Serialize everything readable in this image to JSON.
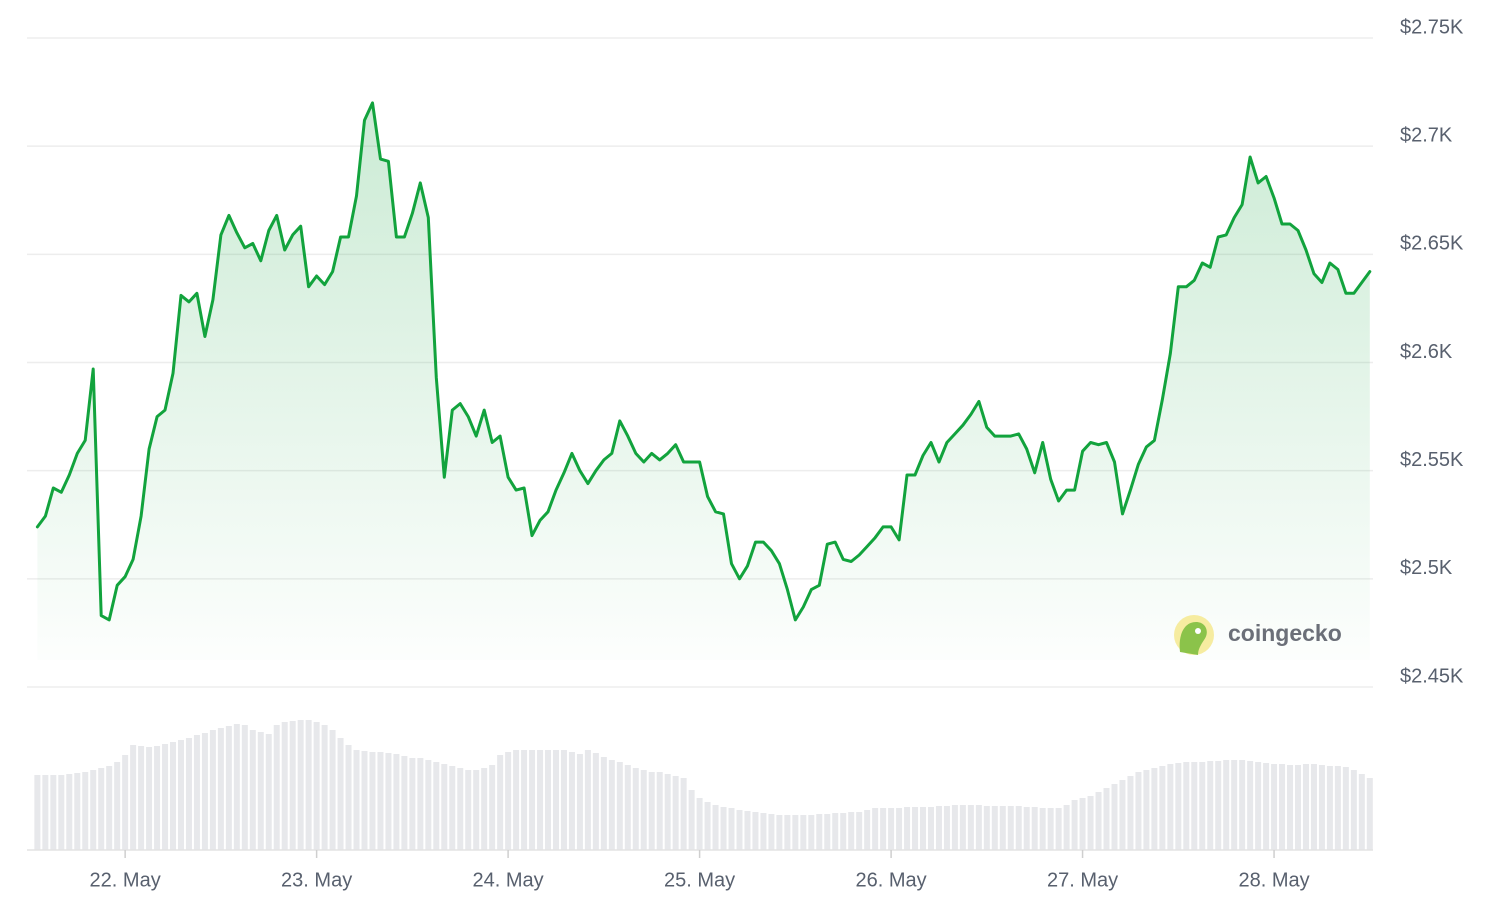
{
  "chart_data": {
    "type": "line",
    "color": "#12a33d",
    "volume_color": "#e7e8eb",
    "watermark": "coingecko",
    "x": [
      13,
      14,
      15,
      16,
      17,
      18,
      19,
      20,
      21,
      22,
      23,
      24,
      25,
      26,
      27,
      28,
      29,
      30,
      31,
      32,
      33,
      34,
      35,
      36,
      37,
      38,
      39,
      40,
      41,
      42,
      43,
      44,
      45,
      46,
      47,
      48,
      49,
      50,
      51,
      52,
      53,
      54,
      55,
      56,
      57,
      58,
      59,
      60,
      61,
      62,
      63,
      64,
      65,
      66,
      67,
      68,
      69,
      70,
      71,
      72,
      73,
      74,
      75,
      76,
      77,
      78,
      79,
      80,
      81,
      82,
      83,
      84,
      85,
      86,
      87,
      88,
      89,
      90,
      91,
      92,
      93,
      94,
      95,
      96,
      97,
      98,
      99,
      100,
      101,
      102,
      103,
      104,
      105,
      106,
      107,
      108,
      109,
      110,
      111,
      112,
      113,
      114,
      115,
      116,
      117,
      118,
      119,
      120,
      121,
      122,
      123,
      124,
      125,
      126,
      127,
      128,
      129,
      130,
      131,
      132,
      133,
      134,
      135,
      136,
      137,
      138,
      139,
      140,
      141,
      142,
      143,
      144,
      145,
      146,
      147,
      148,
      149,
      150,
      151,
      152,
      153,
      154,
      155,
      156,
      157,
      158,
      159,
      160,
      161,
      162,
      163,
      164,
      165,
      166,
      167,
      168,
      169,
      170,
      171,
      172,
      173,
      174,
      175,
      176,
      177,
      178,
      179,
      180
    ],
    "values": [
      2524,
      2529,
      2542,
      2540,
      2548,
      2558,
      2564,
      2597,
      2483,
      2481,
      2497,
      2501,
      2509,
      2529,
      2560,
      2575,
      2578,
      2595,
      2631,
      2628,
      2632,
      2612,
      2629,
      2659,
      2668,
      2660,
      2653,
      2655,
      2647,
      2661,
      2668,
      2652,
      2659,
      2663,
      2635,
      2640,
      2636,
      2642,
      2658,
      2658,
      2677,
      2712,
      2720,
      2694,
      2693,
      2658,
      2658,
      2669,
      2683,
      2667,
      2593,
      2547,
      2578,
      2581,
      2575,
      2566,
      2578,
      2563,
      2566,
      2547,
      2541,
      2542,
      2520,
      2527,
      2531,
      2541,
      2549,
      2558,
      2550,
      2544,
      2550,
      2555,
      2558,
      2573,
      2566,
      2558,
      2554,
      2558,
      2555,
      2558,
      2562,
      2554,
      2554,
      2554,
      2538,
      2531,
      2530,
      2507,
      2500,
      2506,
      2517,
      2517,
      2513,
      2507,
      2495,
      2481,
      2487,
      2495,
      2497,
      2516,
      2517,
      2509,
      2508,
      2511,
      2515,
      2519,
      2524,
      2524,
      2518,
      2548,
      2548,
      2557,
      2563,
      2554,
      2563,
      2567,
      2571,
      2576,
      2582,
      2570,
      2566,
      2566,
      2566,
      2567,
      2560,
      2549,
      2563,
      2546,
      2536,
      2541,
      2541,
      2559,
      2563,
      2562,
      2563,
      2554,
      2530,
      2541,
      2553,
      2561,
      2564,
      2583,
      2604,
      2635,
      2635,
      2638,
      2646,
      2644,
      2658,
      2659,
      2667,
      2673,
      2695,
      2683,
      2686,
      2676,
      2664,
      2664,
      2661,
      2652,
      2641,
      2637,
      2646,
      2643,
      2632,
      2632,
      2637,
      2642
    ],
    "volume": [
      75,
      75,
      75,
      75,
      76,
      77,
      78,
      80,
      82,
      84,
      88,
      95,
      105,
      104,
      103,
      104,
      106,
      108,
      110,
      112,
      115,
      117,
      120,
      122,
      124,
      126,
      125,
      120,
      118,
      116,
      125,
      128,
      129,
      130,
      130,
      128,
      125,
      120,
      112,
      105,
      100,
      99,
      98,
      98,
      97,
      96,
      94,
      92,
      92,
      90,
      88,
      86,
      84,
      82,
      80,
      80,
      82,
      85,
      95,
      98,
      100,
      100,
      100,
      100,
      100,
      100,
      100,
      98,
      96,
      100,
      97,
      93,
      90,
      88,
      85,
      82,
      80,
      78,
      78,
      76,
      74,
      72,
      60,
      52,
      48,
      45,
      43,
      42,
      40,
      39,
      38,
      37,
      36,
      35,
      35,
      35,
      35,
      35,
      36,
      36,
      37,
      37,
      38,
      38,
      40,
      42,
      42,
      42,
      42,
      43,
      43,
      43,
      43,
      44,
      44,
      45,
      45,
      45,
      45,
      44,
      44,
      44,
      44,
      44,
      43,
      43,
      42,
      42,
      42,
      45,
      50,
      52,
      54,
      58,
      62,
      66,
      70,
      74,
      78,
      80,
      82,
      84,
      86,
      87,
      88,
      88,
      88,
      89,
      89,
      90,
      90,
      90,
      89,
      88,
      87,
      86,
      86,
      85,
      85,
      86,
      86,
      85,
      84,
      84,
      83,
      80,
      76,
      72
    ],
    "xlim": [
      11.7,
      180.4
    ],
    "ylim": [
      2450,
      2750
    ],
    "xticks": [
      {
        "value": 24,
        "label": "22. May"
      },
      {
        "value": 48,
        "label": "23. May"
      },
      {
        "value": 72,
        "label": "24. May"
      },
      {
        "value": 96,
        "label": "25. May"
      },
      {
        "value": 120,
        "label": "26. May"
      },
      {
        "value": 144,
        "label": "27. May"
      },
      {
        "value": 168,
        "label": "28. May"
      }
    ],
    "yticks": [
      {
        "value": 2450,
        "label": "$2.45K"
      },
      {
        "value": 2500,
        "label": "$2.5K"
      },
      {
        "value": 2550,
        "label": "$2.55K"
      },
      {
        "value": 2600,
        "label": "$2.6K"
      },
      {
        "value": 2650,
        "label": "$2.65K"
      },
      {
        "value": 2700,
        "label": "$2.7K"
      },
      {
        "value": 2750,
        "label": "$2.75K"
      }
    ],
    "grid": true
  }
}
